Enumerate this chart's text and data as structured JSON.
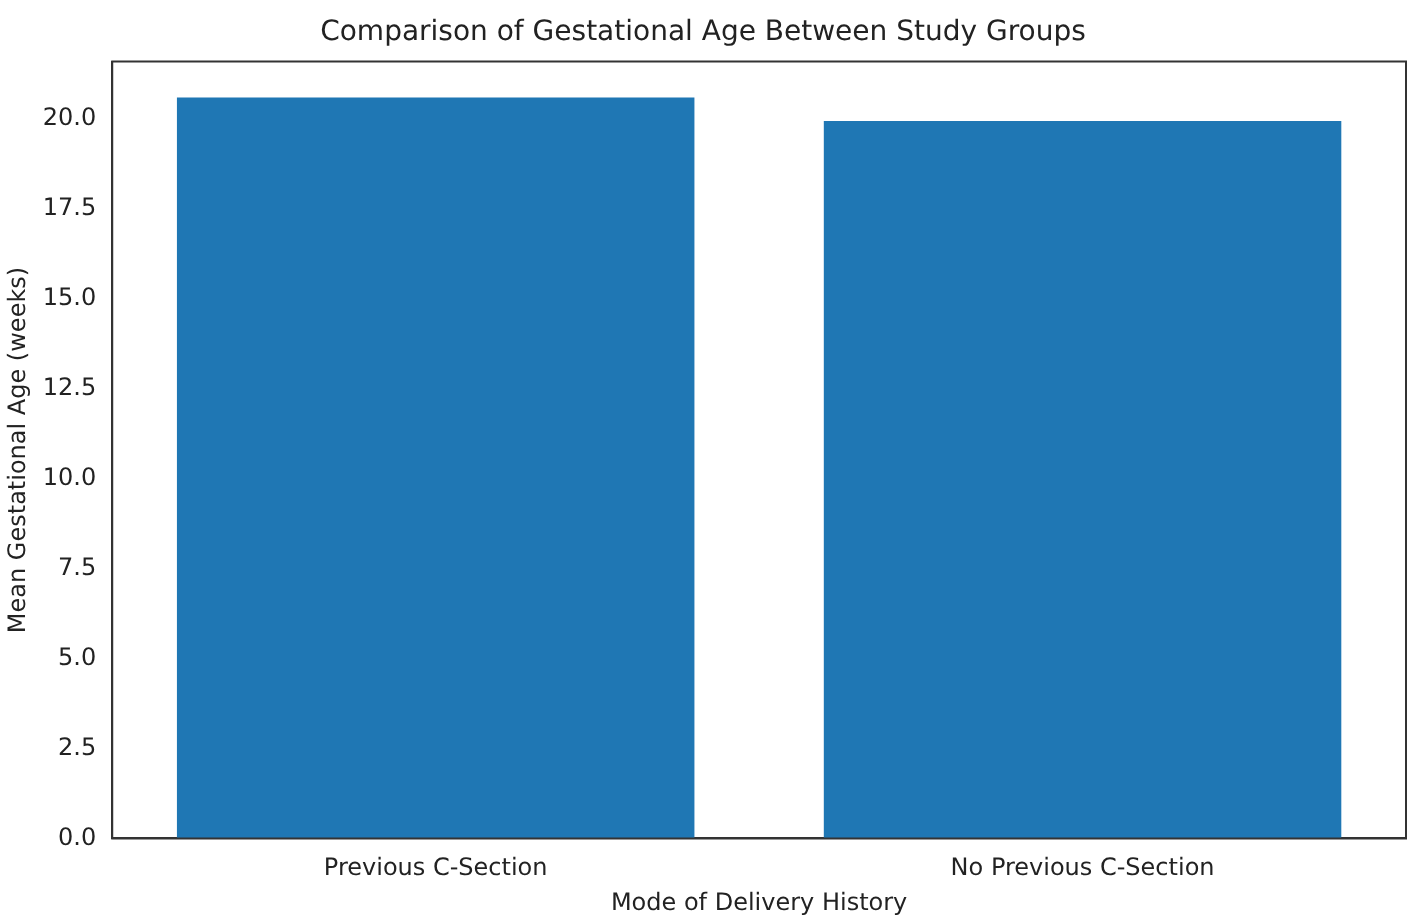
{
  "chart_data": {
    "type": "bar",
    "title": "Comparison of Gestational Age Between Study Groups",
    "xlabel": "Mode of Delivery History",
    "ylabel": "Mean Gestational Age (weeks)",
    "categories": [
      "Previous C-Section",
      "No Previous C-Section"
    ],
    "values": [
      20.6,
      19.95
    ],
    "color": "#1f77b4",
    "ylim": [
      0,
      21.6
    ],
    "yticks": [
      {
        "value": 0,
        "label": "0.0"
      },
      {
        "value": 2.5,
        "label": "2.5"
      },
      {
        "value": 5,
        "label": "5.0"
      },
      {
        "value": 7.5,
        "label": "7.5"
      },
      {
        "value": 10,
        "label": "10.0"
      },
      {
        "value": 12.5,
        "label": "12.5"
      },
      {
        "value": 15,
        "label": "15.0"
      },
      {
        "value": 17.5,
        "label": "17.5"
      },
      {
        "value": 20,
        "label": "20.0"
      }
    ],
    "grid": false,
    "legend": false
  }
}
